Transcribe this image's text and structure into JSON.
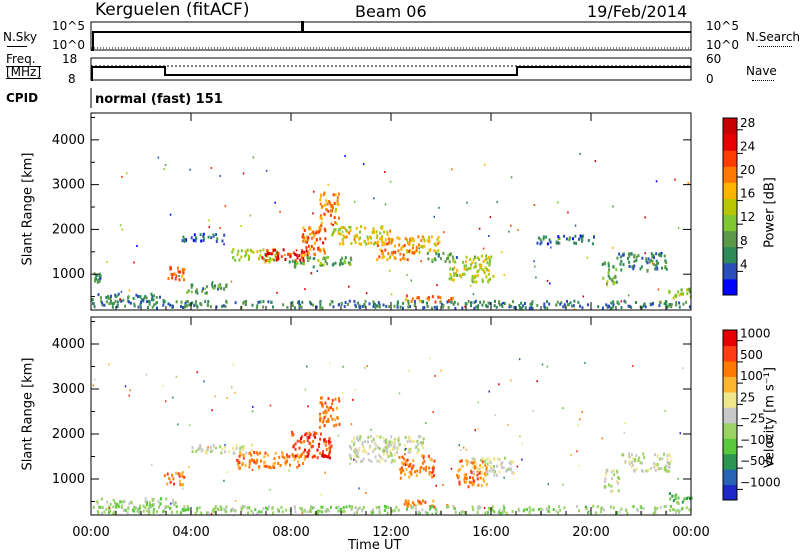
{
  "header": {
    "station": "Kerguelen (fitACF)",
    "beam": "Beam 06",
    "date": "19/Feb/2014"
  },
  "noise_panel": {
    "left_label": "N.Sky",
    "right_label": "N.Search",
    "top_tick": "10^5",
    "bottom_tick": "10^0"
  },
  "freq_panel": {
    "left_label_1": "Freq.",
    "left_label_2": "[MHz]",
    "right_label": "Nave",
    "left_ticks": [
      "18",
      "8"
    ],
    "right_ticks": [
      "60",
      "0"
    ]
  },
  "cpid": {
    "label": "CPID",
    "value": "normal (fast) 151"
  },
  "colors": {
    "power": [
      "#0000ff",
      "#2a4fb8",
      "#2e8b57",
      "#5a9a4a",
      "#7fc832",
      "#b8c800",
      "#ffb400",
      "#ff7800",
      "#ff3c00",
      "#e60000",
      "#c80000"
    ],
    "velocity": [
      "#1e28c8",
      "#2864b4",
      "#2a9650",
      "#5ac83c",
      "#9ad264",
      "#c8c8c8",
      "#f0e68c",
      "#ffb432",
      "#ff7800",
      "#ff3c14",
      "#e60000"
    ]
  },
  "chart_data": [
    {
      "type": "heatmap",
      "panel": "power",
      "xlabel": "Time UT",
      "ylabel": "Slant Range [km]",
      "x_ticks": [
        "00:00",
        "04:00",
        "08:00",
        "12:00",
        "16:00",
        "20:00",
        "00:00"
      ],
      "xlim_hours": [
        0,
        24
      ],
      "y_ticks": [
        1000,
        2000,
        3000,
        4000
      ],
      "ylim": [
        200,
        4600
      ],
      "colorbar": {
        "label": "Power [dB]",
        "ticks": [
          4,
          8,
          12,
          16,
          20,
          24,
          28
        ],
        "range": [
          0,
          30
        ]
      },
      "blobs": [
        {
          "t": 0.2,
          "r": 950,
          "dt": 0.15,
          "dr": 120,
          "v": 8
        },
        {
          "t": 1.5,
          "r": 500,
          "dt": 1.5,
          "dr": 90,
          "v": 6
        },
        {
          "t": 3.3,
          "r": 1050,
          "dt": 0.4,
          "dr": 150,
          "v": 22
        },
        {
          "t": 4.6,
          "r": 720,
          "dt": 0.8,
          "dr": 120,
          "v": 8
        },
        {
          "t": 4.5,
          "r": 1850,
          "dt": 0.9,
          "dr": 90,
          "v": 4
        },
        {
          "t": 6.5,
          "r": 1450,
          "dt": 0.9,
          "dr": 150,
          "v": 14
        },
        {
          "t": 7.7,
          "r": 1450,
          "dt": 0.9,
          "dr": 130,
          "v": 26
        },
        {
          "t": 8.9,
          "r": 1800,
          "dt": 0.5,
          "dr": 350,
          "v": 22
        },
        {
          "t": 9.5,
          "r": 2500,
          "dt": 0.4,
          "dr": 350,
          "v": 20
        },
        {
          "t": 9.2,
          "r": 1300,
          "dt": 1.3,
          "dr": 120,
          "v": 10
        },
        {
          "t": 10.8,
          "r": 1900,
          "dt": 1.2,
          "dr": 200,
          "v": 16
        },
        {
          "t": 12.2,
          "r": 1600,
          "dt": 0.8,
          "dr": 250,
          "v": 20
        },
        {
          "t": 13.3,
          "r": 1700,
          "dt": 0.6,
          "dr": 180,
          "v": 18
        },
        {
          "t": 13.5,
          "r": 480,
          "dt": 1.0,
          "dr": 70,
          "v": 22
        },
        {
          "t": 15.2,
          "r": 1150,
          "dt": 0.9,
          "dr": 300,
          "v": 14
        },
        {
          "t": 14.0,
          "r": 1400,
          "dt": 0.6,
          "dr": 100,
          "v": 8
        },
        {
          "t": 19.0,
          "r": 1800,
          "dt": 1.2,
          "dr": 90,
          "v": 4
        },
        {
          "t": 20.7,
          "r": 1050,
          "dt": 0.3,
          "dr": 250,
          "v": 10
        },
        {
          "t": 22.0,
          "r": 1300,
          "dt": 1.0,
          "dr": 200,
          "v": 6
        },
        {
          "t": 23.5,
          "r": 600,
          "dt": 0.5,
          "dr": 120,
          "v": 14
        },
        {
          "t": 12.0,
          "r": 350,
          "dt": 12.0,
          "dr": 80,
          "v": 6
        }
      ]
    },
    {
      "type": "heatmap",
      "panel": "velocity",
      "xlabel": "Time UT",
      "ylabel": "Slant Range [km]",
      "x_ticks": [
        "00:00",
        "04:00",
        "08:00",
        "12:00",
        "16:00",
        "20:00",
        "00:00"
      ],
      "xlim_hours": [
        0,
        24
      ],
      "y_ticks": [
        1000,
        2000,
        3000,
        4000
      ],
      "ylim": [
        200,
        4600
      ],
      "colorbar": {
        "label": "Velocity [m s⁻¹]",
        "ticks": [
          "1000",
          "500",
          "100",
          "25",
          "−25",
          "−100",
          "−500",
          "−1000"
        ],
        "range": [
          -1200,
          1200
        ]
      },
      "blobs": [
        {
          "t": 1.8,
          "r": 500,
          "dt": 1.6,
          "dr": 100,
          "v": 4
        },
        {
          "t": 3.3,
          "r": 1050,
          "dt": 0.4,
          "dr": 150,
          "v": 8
        },
        {
          "t": 5.2,
          "r": 1700,
          "dt": 1.2,
          "dr": 100,
          "v": 5
        },
        {
          "t": 7.2,
          "r": 1450,
          "dt": 1.4,
          "dr": 180,
          "v": 8
        },
        {
          "t": 8.8,
          "r": 1800,
          "dt": 0.8,
          "dr": 300,
          "v": 9
        },
        {
          "t": 9.5,
          "r": 2500,
          "dt": 0.4,
          "dr": 350,
          "v": 8
        },
        {
          "t": 11.3,
          "r": 1700,
          "dt": 1.0,
          "dr": 300,
          "v": 5
        },
        {
          "t": 12.5,
          "r": 1800,
          "dt": 0.8,
          "dr": 200,
          "v": 5
        },
        {
          "t": 13.0,
          "r": 1300,
          "dt": 0.7,
          "dr": 250,
          "v": 8
        },
        {
          "t": 13.5,
          "r": 480,
          "dt": 1.0,
          "dr": 70,
          "v": 8
        },
        {
          "t": 15.2,
          "r": 1150,
          "dt": 0.6,
          "dr": 300,
          "v": 8
        },
        {
          "t": 16.0,
          "r": 1300,
          "dt": 0.9,
          "dr": 200,
          "v": 5
        },
        {
          "t": 20.8,
          "r": 1000,
          "dt": 0.3,
          "dr": 250,
          "v": 5
        },
        {
          "t": 22.2,
          "r": 1400,
          "dt": 1.0,
          "dr": 200,
          "v": 5
        },
        {
          "t": 23.5,
          "r": 600,
          "dt": 0.5,
          "dr": 120,
          "v": 3
        },
        {
          "t": 12.0,
          "r": 350,
          "dt": 12.0,
          "dr": 80,
          "v": 4
        }
      ]
    }
  ]
}
